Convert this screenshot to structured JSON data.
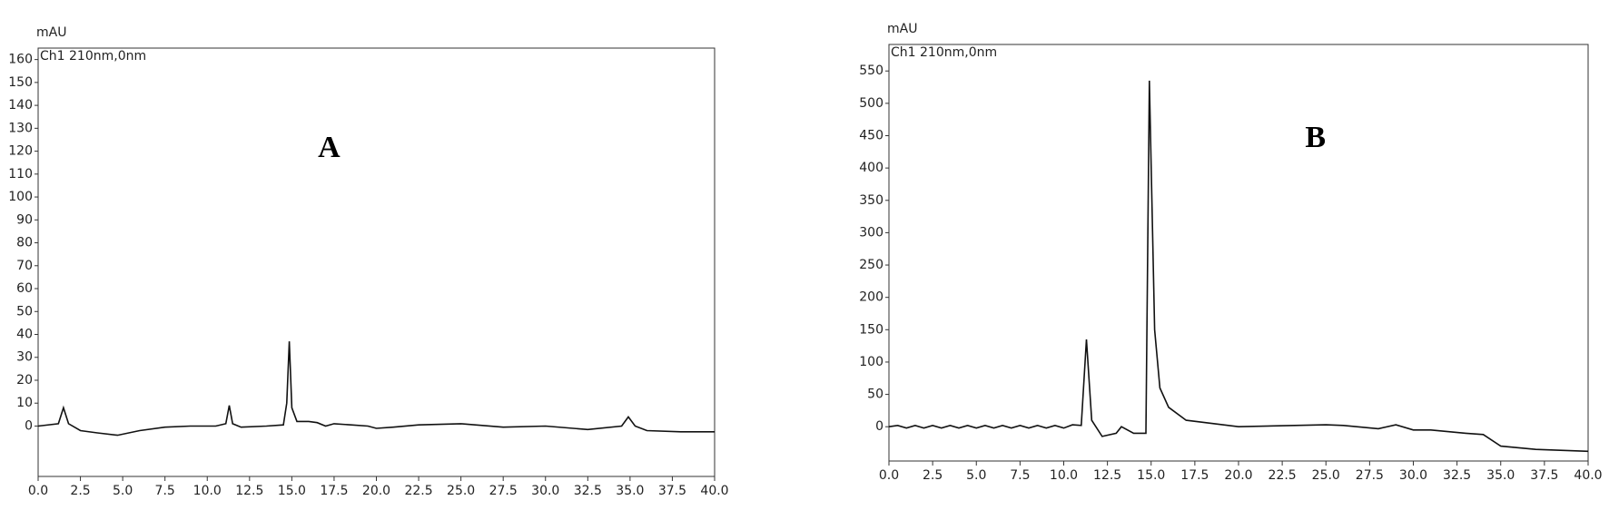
{
  "chart_data": [
    {
      "type": "line",
      "title": "A",
      "y_label": "mAU",
      "annotation": "Ch1 210nm,0nm",
      "color": "#111111",
      "x": [
        0,
        1.2,
        1.5,
        1.8,
        2.5,
        3.5,
        4.7,
        6,
        7.5,
        9,
        10.5,
        11.1,
        11.3,
        11.5,
        12,
        13.5,
        14.5,
        14.7,
        14.85,
        15.0,
        15.3,
        16,
        16.5,
        17,
        17.5,
        18.5,
        19.5,
        20,
        21,
        22.5,
        25,
        27.5,
        30,
        32.5,
        34.5,
        34.9,
        35.3,
        36,
        38,
        40
      ],
      "values": [
        0,
        1,
        8,
        1,
        -2,
        -3,
        -4,
        -2,
        -0.5,
        0,
        0,
        1,
        9,
        1,
        -0.5,
        0,
        0.5,
        10,
        37,
        8,
        2,
        2,
        1.5,
        0,
        1,
        0.5,
        0,
        -1,
        -0.5,
        0.5,
        1,
        -0.5,
        0,
        -1.5,
        0,
        4,
        0,
        -2,
        -2.5,
        -2.5
      ],
      "xlim": [
        0,
        40
      ],
      "ylim": [
        -22,
        165
      ],
      "xticks": [
        {
          "value": 0,
          "label": "0.0"
        },
        2.5,
        {
          "value": 5,
          "label": "5.0"
        },
        7.5,
        {
          "value": 10,
          "label": "10.0"
        },
        12.5,
        {
          "value": 15,
          "label": "15.0"
        },
        17.5,
        {
          "value": 20,
          "label": "20.0"
        },
        22.5,
        {
          "value": 25,
          "label": "25.0"
        },
        27.5,
        {
          "value": 30,
          "label": "30.0"
        },
        32.5,
        {
          "value": 35,
          "label": "35.0"
        },
        37.5,
        {
          "value": 40,
          "label": "40.0"
        }
      ],
      "yticks": [
        0,
        10,
        20,
        30,
        40,
        50,
        60,
        70,
        80,
        90,
        100,
        110,
        120,
        130,
        140,
        150,
        160
      ]
    },
    {
      "type": "line",
      "title": "B",
      "y_label": "mAU",
      "annotation": "Ch1 210nm,0nm",
      "color": "#111111",
      "x": [
        0,
        0.5,
        1,
        1.5,
        2,
        2.5,
        3,
        3.5,
        4,
        4.5,
        5,
        5.5,
        6,
        6.5,
        7,
        7.5,
        8,
        8.5,
        9,
        9.5,
        10,
        10.5,
        11,
        11.3,
        11.6,
        12.2,
        13,
        13.3,
        14,
        14.7,
        14.9,
        15.2,
        15.5,
        16,
        17,
        20,
        25,
        26,
        28,
        29,
        30,
        31,
        33,
        34,
        35,
        37,
        40
      ],
      "values": [
        0,
        2,
        -2,
        2,
        -2,
        2,
        -2,
        2,
        -2,
        2,
        -2,
        2,
        -2,
        2,
        -2,
        2,
        -2,
        2,
        -2,
        2,
        -2,
        3,
        2,
        135,
        10,
        -15,
        -10,
        0,
        -10,
        -10,
        535,
        150,
        60,
        30,
        10,
        0,
        3,
        2,
        -3,
        3,
        -5,
        -5,
        -10,
        -12,
        -30,
        -35,
        -38
      ],
      "xlim": [
        0,
        40
      ],
      "ylim": [
        -53,
        591
      ],
      "xticks": [
        {
          "value": 0,
          "label": "0.0"
        },
        2.5,
        {
          "value": 5,
          "label": "5.0"
        },
        7.5,
        {
          "value": 10,
          "label": "10.0"
        },
        12.5,
        {
          "value": 15,
          "label": "15.0"
        },
        17.5,
        {
          "value": 20,
          "label": "20.0"
        },
        22.5,
        {
          "value": 25,
          "label": "25.0"
        },
        27.5,
        {
          "value": 30,
          "label": "30.0"
        },
        32.5,
        {
          "value": 35,
          "label": "35.0"
        },
        37.5,
        {
          "value": 40,
          "label": "40.0"
        }
      ],
      "yticks": [
        0,
        50,
        100,
        150,
        200,
        250,
        300,
        350,
        400,
        450,
        500,
        550
      ]
    }
  ]
}
